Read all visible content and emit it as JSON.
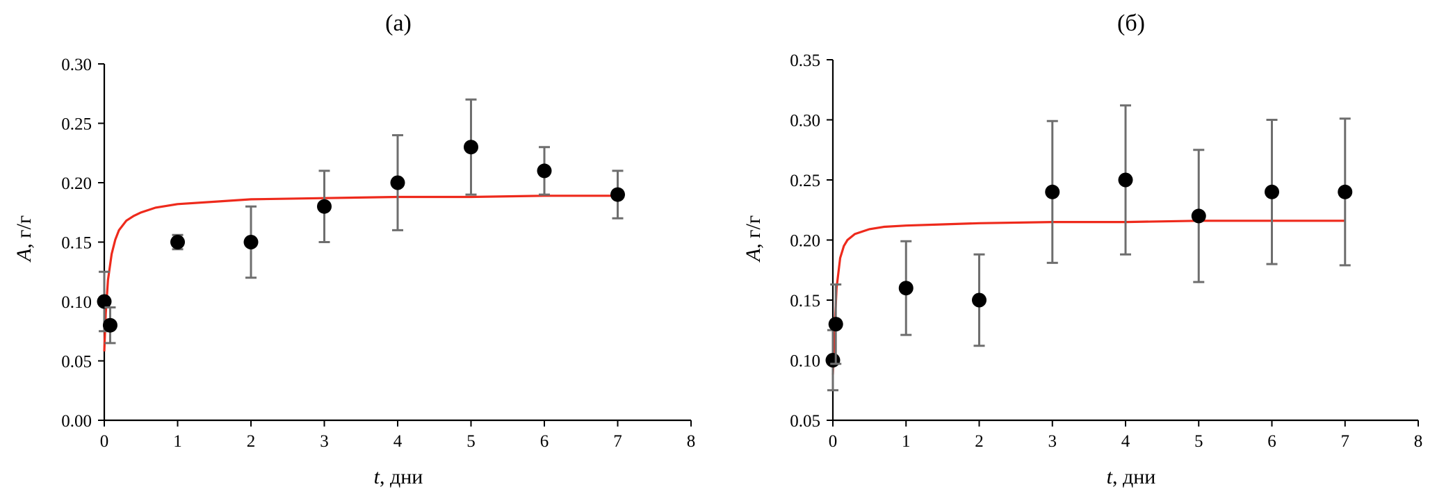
{
  "chart_data": [
    {
      "type": "scatter",
      "title": "(а)",
      "xlabel_var": "t",
      "xlabel_unit": ", дни",
      "ylabel_var": "A",
      "ylabel_unit": ", г/г",
      "xlim": [
        0,
        8
      ],
      "ylim": [
        0,
        0.3
      ],
      "xticks": [
        0,
        1,
        2,
        3,
        4,
        5,
        6,
        7,
        8
      ],
      "yticks": [
        "0.00",
        "0.05",
        "0.10",
        "0.15",
        "0.20",
        "0.25",
        "0.30"
      ],
      "grid": false,
      "points": [
        {
          "x": 0.0,
          "y": 0.1,
          "err": 0.025
        },
        {
          "x": 0.08,
          "y": 0.08,
          "err": 0.015
        },
        {
          "x": 1,
          "y": 0.15,
          "err": 0.006
        },
        {
          "x": 2,
          "y": 0.15,
          "err": 0.03
        },
        {
          "x": 3,
          "y": 0.18,
          "err": 0.03
        },
        {
          "x": 4,
          "y": 0.2,
          "err": 0.04
        },
        {
          "x": 5,
          "y": 0.23,
          "err": 0.04
        },
        {
          "x": 6,
          "y": 0.21,
          "err": 0.02
        },
        {
          "x": 7,
          "y": 0.19,
          "err": 0.02
        }
      ],
      "fit_curve": {
        "x": [
          0,
          0.02,
          0.05,
          0.1,
          0.15,
          0.2,
          0.3,
          0.4,
          0.5,
          0.7,
          1,
          1.5,
          2,
          3,
          4,
          5,
          6,
          7
        ],
        "y": [
          0.058,
          0.09,
          0.118,
          0.14,
          0.152,
          0.16,
          0.168,
          0.172,
          0.175,
          0.179,
          0.182,
          0.184,
          0.186,
          0.187,
          0.188,
          0.188,
          0.189,
          0.189
        ]
      }
    },
    {
      "type": "scatter",
      "title": "(б)",
      "xlabel_var": "t",
      "xlabel_unit": ", дни",
      "ylabel_var": "A",
      "ylabel_unit": ", г/г",
      "xlim": [
        0,
        8
      ],
      "ylim": [
        0.05,
        0.35
      ],
      "xticks": [
        0,
        1,
        2,
        3,
        4,
        5,
        6,
        7,
        8
      ],
      "yticks": [
        "0.05",
        "0.10",
        "0.15",
        "0.20",
        "0.25",
        "0.30",
        "0.35"
      ],
      "grid": false,
      "points": [
        {
          "x": 0.0,
          "y": 0.1,
          "err": 0.025
        },
        {
          "x": 0.04,
          "y": 0.13,
          "err": 0.033
        },
        {
          "x": 1,
          "y": 0.16,
          "err": 0.039
        },
        {
          "x": 2,
          "y": 0.15,
          "err": 0.038
        },
        {
          "x": 3,
          "y": 0.24,
          "err": 0.059
        },
        {
          "x": 4,
          "y": 0.25,
          "err": 0.062
        },
        {
          "x": 5,
          "y": 0.22,
          "err": 0.055
        },
        {
          "x": 6,
          "y": 0.24,
          "err": 0.06
        },
        {
          "x": 7,
          "y": 0.24,
          "err": 0.061
        }
      ],
      "fit_curve": {
        "x": [
          0,
          0.02,
          0.05,
          0.1,
          0.15,
          0.2,
          0.3,
          0.4,
          0.5,
          0.7,
          1,
          1.5,
          2,
          3,
          4,
          5,
          6,
          7
        ],
        "y": [
          0.088,
          0.12,
          0.16,
          0.185,
          0.195,
          0.2,
          0.205,
          0.207,
          0.209,
          0.211,
          0.212,
          0.213,
          0.214,
          0.215,
          0.215,
          0.216,
          0.216,
          0.216
        ]
      }
    }
  ]
}
